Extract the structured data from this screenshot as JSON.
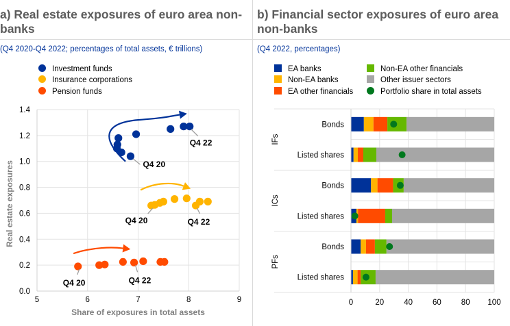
{
  "panel_a": {
    "title_line1": "a) Real estate exposures of euro area non-",
    "title_line2": "banks",
    "subtitle": "(Q4 2020-Q4 2022; percentages of total assets, € trillions)"
  },
  "panel_b": {
    "title_line1": "b) Financial sector exposures of euro area",
    "title_line2": "non-banks",
    "subtitle": "(Q4 2022, percentages)"
  },
  "colors": {
    "investment_funds": "#003299",
    "insurance_corporations": "#FFB400",
    "pension_funds": "#FF4B00",
    "ea_banks": "#003299",
    "non_ea_banks": "#FFB400",
    "ea_other_financials": "#FF4B00",
    "non_ea_other_financials": "#65B800",
    "other_issuer_sectors": "#A6A6A6",
    "portfolio_share": "#00781E"
  },
  "chart_data": [
    {
      "type": "scatter",
      "title": "a) Real estate exposures of euro area non-banks",
      "xlabel": "Share of exposures in total assets",
      "ylabel": "Real estate exposures",
      "xlim": [
        5,
        9
      ],
      "ylim": [
        0,
        1.4
      ],
      "xticks": [
        "5",
        "6",
        "7",
        "8",
        "9"
      ],
      "yticks": [
        "0.0",
        "0.2",
        "0.4",
        "0.6",
        "0.8",
        "1.0",
        "1.2",
        "1.4"
      ],
      "grid": true,
      "legend": [
        "Investment funds",
        "Insurance corporations",
        "Pension funds"
      ],
      "series": [
        {
          "name": "Investment funds",
          "points": [
            [
              6.85,
              1.04
            ],
            [
              6.67,
              1.07
            ],
            [
              6.58,
              1.1
            ],
            [
              6.59,
              1.13
            ],
            [
              6.61,
              1.18
            ],
            [
              6.96,
              1.21
            ],
            [
              7.64,
              1.25
            ],
            [
              7.9,
              1.27
            ],
            [
              8.02,
              1.27
            ]
          ],
          "annotations": [
            {
              "text": "Q4 20",
              "point": 0
            },
            {
              "text": "Q4 22",
              "point": 8
            }
          ]
        },
        {
          "name": "Insurance corporations",
          "points": [
            [
              7.26,
              0.66
            ],
            [
              7.33,
              0.665
            ],
            [
              7.43,
              0.68
            ],
            [
              7.5,
              0.69
            ],
            [
              7.72,
              0.71
            ],
            [
              7.96,
              0.715
            ],
            [
              8.38,
              0.69
            ],
            [
              8.22,
              0.69
            ],
            [
              8.14,
              0.66
            ]
          ],
          "annotations": [
            {
              "text": "Q4 20",
              "point": 0
            },
            {
              "text": "Q4 22",
              "point": 8
            }
          ]
        },
        {
          "name": "Pension funds",
          "points": [
            [
              5.81,
              0.19
            ],
            [
              6.23,
              0.2
            ],
            [
              6.34,
              0.205
            ],
            [
              6.7,
              0.225
            ],
            [
              7.1,
              0.23
            ],
            [
              7.44,
              0.225
            ],
            [
              7.52,
              0.225
            ],
            [
              6.92,
              0.22
            ]
          ],
          "annotations": [
            {
              "text": "Q4 20",
              "point": 0
            },
            {
              "text": "Q4 22",
              "point": 7
            }
          ]
        }
      ]
    },
    {
      "type": "bar",
      "orientation": "horizontal-stacked",
      "title": "b) Financial sector exposures of euro area non-banks",
      "xlim": [
        0,
        100
      ],
      "xticks": [
        "0",
        "20",
        "40",
        "60",
        "80",
        "100"
      ],
      "grid": true,
      "groups": [
        "IFs",
        "ICs",
        "PFs"
      ],
      "categories": [
        "Bonds",
        "Listed shares"
      ],
      "legend": [
        "EA banks",
        "Non-EA banks",
        "EA other financials",
        "Non-EA other financials",
        "Other issuer sectors",
        "Portfolio share in total assets"
      ],
      "rows": [
        {
          "group": "IFs",
          "category": "Bonds",
          "values": [
            9.0,
            6.7,
            9.7,
            13.4,
            61.2
          ],
          "portfolio_share": 29.8
        },
        {
          "group": "IFs",
          "category": "Listed shares",
          "values": [
            1.8,
            3.0,
            3.8,
            9.1,
            82.3
          ],
          "portfolio_share": 35.7
        },
        {
          "group": "ICs",
          "category": "Bonds",
          "values": [
            14.0,
            4.5,
            10.9,
            7.4,
            63.2
          ],
          "portfolio_share": 34.4
        },
        {
          "group": "ICs",
          "category": "Listed shares",
          "values": [
            3.8,
            1.1,
            19.0,
            4.8,
            71.3
          ],
          "portfolio_share": 2.7
        },
        {
          "group": "PFs",
          "category": "Bonds",
          "values": [
            6.8,
            3.7,
            6.2,
            8.1,
            75.2
          ],
          "portfolio_share": 26.9
        },
        {
          "group": "PFs",
          "category": "Listed shares",
          "values": [
            1.4,
            3.2,
            2.2,
            10.4,
            82.8
          ],
          "portfolio_share": 10.5
        }
      ]
    }
  ]
}
